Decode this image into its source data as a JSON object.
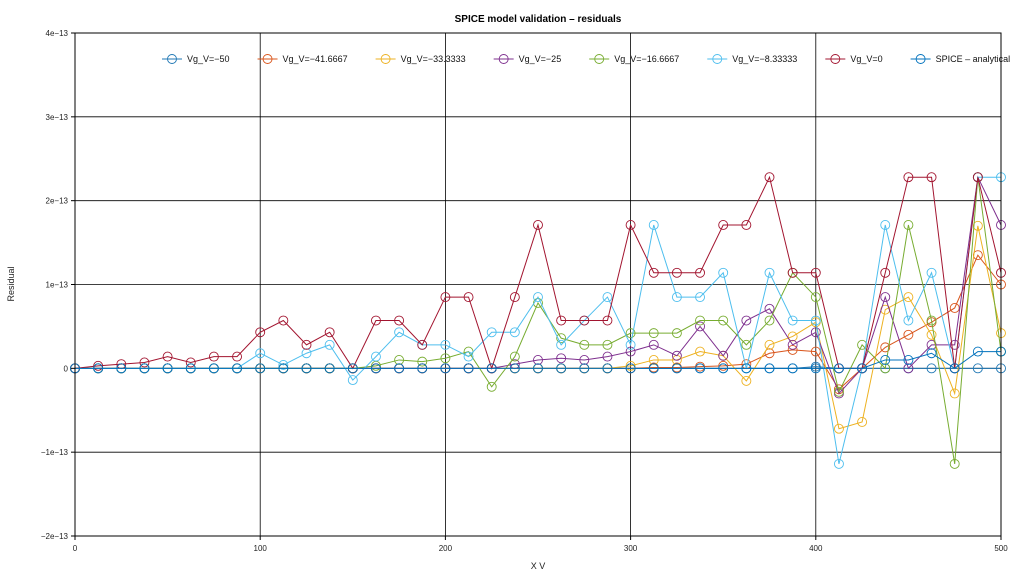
{
  "chart_data": {
    "type": "line",
    "title": "SPICE model validation – residuals",
    "xlabel": "X V",
    "ylabel": "Residual",
    "xlim": [
      0,
      500
    ],
    "ylim": [
      -2e-13,
      4e-13
    ],
    "x_ticks": [
      0,
      100,
      200,
      300,
      400,
      500
    ],
    "x_tick_labels": [
      "0",
      "100",
      "200",
      "300",
      "400",
      "500"
    ],
    "y_ticks": [
      -2e-13,
      -1e-13,
      0,
      1e-13,
      2e-13,
      3e-13,
      4e-13
    ],
    "y_tick_labels": [
      "−2e−13",
      "−1e−13",
      "0",
      "1e−13",
      "2e−13",
      "3e−13",
      "4e−13"
    ],
    "grid": true,
    "legend_position": "top",
    "marker": "open-circle",
    "x": [
      0,
      12.5,
      25,
      37.5,
      50,
      62.5,
      75,
      87.5,
      100,
      112.5,
      125,
      137.5,
      150,
      162.5,
      175,
      187.5,
      200,
      212.5,
      225,
      237.5,
      250,
      262.5,
      275,
      287.5,
      300,
      312.5,
      325,
      337.5,
      350,
      362.5,
      375,
      387.5,
      400,
      412.5,
      425,
      437.5,
      450,
      462.5,
      475,
      487.5,
      500
    ],
    "series": [
      {
        "name": "Vg_V=−50",
        "color": "#1f77b4",
        "values": [
          0,
          0,
          0,
          0,
          0,
          0,
          0,
          0,
          0,
          0,
          0,
          0,
          0,
          0,
          0,
          0,
          0,
          0,
          0,
          0,
          0,
          0,
          0,
          0,
          0,
          0,
          0,
          0,
          0,
          0,
          0,
          0,
          2e-15,
          0,
          0,
          0,
          0,
          0,
          0,
          0,
          0
        ]
      },
      {
        "name": "Vg_V=−41.6667",
        "color": "#d9541a",
        "values": [
          0,
          0,
          0,
          0,
          0,
          0,
          0,
          0,
          0,
          0,
          0,
          0,
          0,
          0,
          0,
          0,
          0,
          0,
          0,
          0,
          0,
          0,
          0,
          0,
          0,
          1e-15,
          1e-15,
          2e-15,
          3e-15,
          5e-15,
          1.8e-14,
          2.2e-14,
          2e-14,
          -2.5e-14,
          0,
          2.5e-14,
          4e-14,
          5.5e-14,
          7.2e-14,
          1.35e-13,
          1e-13
        ]
      },
      {
        "name": "Vg_V=−33.3333",
        "color": "#edb120",
        "values": [
          0,
          0,
          0,
          0,
          0,
          0,
          0,
          0,
          0,
          0,
          0,
          0,
          0,
          0,
          0,
          0,
          0,
          0,
          0,
          0,
          0,
          0,
          0,
          0,
          3e-15,
          1e-14,
          1e-14,
          2e-14,
          1.5e-14,
          -1.5e-14,
          2.8e-14,
          3.8e-14,
          5.5e-14,
          -7.2e-14,
          -6.4e-14,
          7e-14,
          8.5e-14,
          4e-14,
          -3e-14,
          1.7e-13,
          4.2e-14
        ]
      },
      {
        "name": "Vg_V=−25",
        "color": "#7e2f8e",
        "values": [
          0,
          0,
          0,
          0,
          0,
          0,
          0,
          0,
          0,
          0,
          0,
          0,
          0,
          0,
          0,
          0,
          0,
          0,
          0,
          5e-15,
          1e-14,
          1.2e-14,
          1e-14,
          1.4e-14,
          2e-14,
          2.8e-14,
          1.5e-14,
          5e-14,
          1.5e-14,
          5.7e-14,
          7.1e-14,
          2.8e-14,
          4.3e-14,
          -3e-14,
          0,
          8.5e-14,
          0,
          2.8e-14,
          2.8e-14,
          2.28e-13,
          1.71e-13
        ]
      },
      {
        "name": "Vg_V=−16.6667",
        "color": "#77ac30",
        "values": [
          0,
          0,
          0,
          0,
          0,
          0,
          0,
          0,
          0,
          0,
          0,
          0,
          0,
          3e-15,
          1e-14,
          8e-15,
          1.2e-14,
          2e-14,
          -2.2e-14,
          1.4e-14,
          7.8e-14,
          3.6e-14,
          2.8e-14,
          2.8e-14,
          4.2e-14,
          4.2e-14,
          4.2e-14,
          5.7e-14,
          5.7e-14,
          2.8e-14,
          5.7e-14,
          1.14e-13,
          8.5e-14,
          -2.8e-14,
          2.8e-14,
          0,
          1.71e-13,
          5.7e-14,
          -1.14e-13,
          2.28e-13,
          2e-14
        ]
      },
      {
        "name": "Vg_V=−8.33333",
        "color": "#4dbeee",
        "values": [
          0,
          0,
          0,
          0,
          0,
          0,
          0,
          0,
          1.8e-14,
          4e-15,
          1.8e-14,
          2.8e-14,
          -1.4e-14,
          1.4e-14,
          4.3e-14,
          2.8e-14,
          2.8e-14,
          1.4e-14,
          4.3e-14,
          4.3e-14,
          8.5e-14,
          2.8e-14,
          5.7e-14,
          8.5e-14,
          2.8e-14,
          1.71e-13,
          8.5e-14,
          8.5e-14,
          1.14e-13,
          0,
          1.14e-13,
          5.7e-14,
          5.7e-14,
          -1.14e-13,
          0,
          1.71e-13,
          5.7e-14,
          1.14e-13,
          0,
          2.28e-13,
          2.28e-13
        ]
      },
      {
        "name": "Vg_V=0",
        "color": "#a2142f",
        "values": [
          0,
          3e-15,
          5e-15,
          7e-15,
          1.4e-14,
          7e-15,
          1.4e-14,
          1.4e-14,
          4.3e-14,
          5.7e-14,
          2.8e-14,
          4.3e-14,
          0,
          5.7e-14,
          5.7e-14,
          2.8e-14,
          8.5e-14,
          8.5e-14,
          0,
          8.5e-14,
          1.71e-13,
          5.7e-14,
          5.7e-14,
          5.7e-14,
          1.71e-13,
          1.14e-13,
          1.14e-13,
          1.14e-13,
          1.71e-13,
          1.71e-13,
          2.28e-13,
          1.14e-13,
          1.14e-13,
          0,
          0,
          1.14e-13,
          2.28e-13,
          2.28e-13,
          0,
          2.28e-13,
          1.14e-13
        ]
      },
      {
        "name": "SPICE – analytical",
        "color": "#0072bd",
        "values": [
          0,
          0,
          0,
          0,
          0,
          0,
          0,
          0,
          0,
          0,
          0,
          0,
          0,
          0,
          0,
          0,
          0,
          0,
          0,
          0,
          0,
          0,
          0,
          0,
          0,
          0,
          0,
          0,
          0,
          0,
          0,
          0,
          0,
          0,
          0,
          1e-14,
          1e-14,
          1.8e-14,
          0,
          2e-14,
          2e-14
        ]
      }
    ]
  }
}
